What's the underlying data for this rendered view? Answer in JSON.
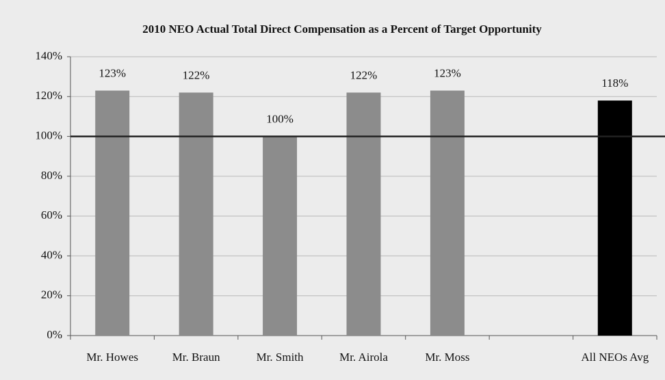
{
  "chart_data": {
    "type": "bar",
    "title": "2010 NEO Actual Total Direct Compensation as a Percent of Target Opportunity",
    "categories": [
      "Mr. Howes",
      "Mr. Braun",
      "Mr. Smith",
      "Mr. Airola",
      "Mr. Moss",
      null,
      "All NEOs Avg"
    ],
    "values": [
      123,
      122,
      100,
      122,
      123,
      null,
      118
    ],
    "value_labels": [
      "123%",
      "122%",
      "100%",
      "122%",
      "123%",
      null,
      "118%"
    ],
    "colors": [
      "#8c8c8c",
      "#8c8c8c",
      "#8c8c8c",
      "#8c8c8c",
      "#8c8c8c",
      null,
      "#000000"
    ],
    "ylim": [
      0,
      140
    ],
    "yticks": [
      {
        "value": 0,
        "label": "0%"
      },
      {
        "value": 20,
        "label": "20%"
      },
      {
        "value": 40,
        "label": "40%"
      },
      {
        "value": 60,
        "label": "60%"
      },
      {
        "value": 80,
        "label": "80%"
      },
      {
        "value": 100,
        "label": "100%"
      },
      {
        "value": 120,
        "label": "120%"
      },
      {
        "value": 140,
        "label": "140%"
      }
    ],
    "grid": true,
    "reference_line": 100
  }
}
